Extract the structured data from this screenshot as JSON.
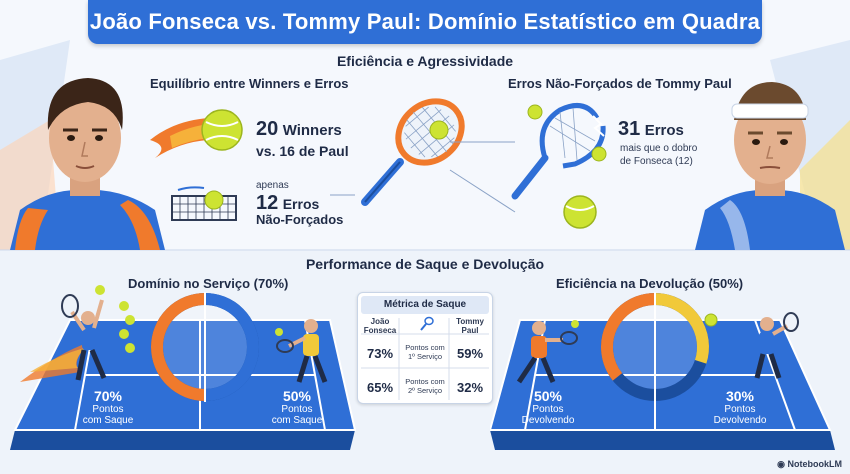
{
  "header": {
    "title": "João Fonseca vs. Tommy Paul: Domínio Estatístico em Quadra"
  },
  "efficiency": {
    "heading": "Eficiência e Agressividade",
    "left_subhead": "Equilíbrio entre Winners e Erros",
    "winners_big": "20",
    "winners_label": "Winners",
    "winners_compare": "vs. 16 de Paul",
    "errors_prefix": "apenas",
    "errors_big": "12",
    "errors_label1": "Erros",
    "errors_label2": "Não-Forçados",
    "right_subhead": "Erros Não-Forçados de Tommy Paul",
    "paul_errors_big": "31",
    "paul_errors_label": "Erros",
    "paul_errors_note1": "mais que o dobro",
    "paul_errors_note2": "de Fonseca (12)"
  },
  "serve": {
    "heading": "Performance de Saque e Devolução",
    "left_subhead": "Domínio no Serviço (70%)",
    "right_subhead": "Eficiência na Devolução (50%)",
    "fonseca_serve_pct": "70%",
    "fonseca_serve_label1": "Pontos",
    "fonseca_serve_label2": "com Saque",
    "paul_serve_pct": "50%",
    "paul_serve_label1": "Pontos",
    "paul_serve_label2": "com Saque",
    "fonseca_return_pct": "50%",
    "fonseca_return_label1": "Pontos",
    "fonseca_return_label2": "Devolvendo",
    "paul_return_pct": "30%",
    "paul_return_label1": "Pontos",
    "paul_return_label2": "Devolvendo",
    "serve_donut": {
      "fonseca": 0.7,
      "paul": 0.5
    },
    "return_donut": {
      "fonseca": 0.5,
      "paul": 0.3
    }
  },
  "metric_table": {
    "title": "Métrica de Saque",
    "col_left_1": "João",
    "col_left_2": "Fonseca",
    "col_right_1": "Tommy",
    "col_right_2": "Paul",
    "rows": [
      {
        "left": "73%",
        "mid1": "Pontos com",
        "mid2": "1º Serviço",
        "right": "59%"
      },
      {
        "left": "65%",
        "mid1": "Pontos com",
        "mid2": "2º Serviço",
        "right": "32%"
      }
    ]
  },
  "footer": {
    "brand": "NotebookLM"
  },
  "colors": {
    "fonseca": "#f07a2c",
    "paul": "#f1c93a",
    "court": "#2f6fd6",
    "accent": "#1f6ed4"
  }
}
